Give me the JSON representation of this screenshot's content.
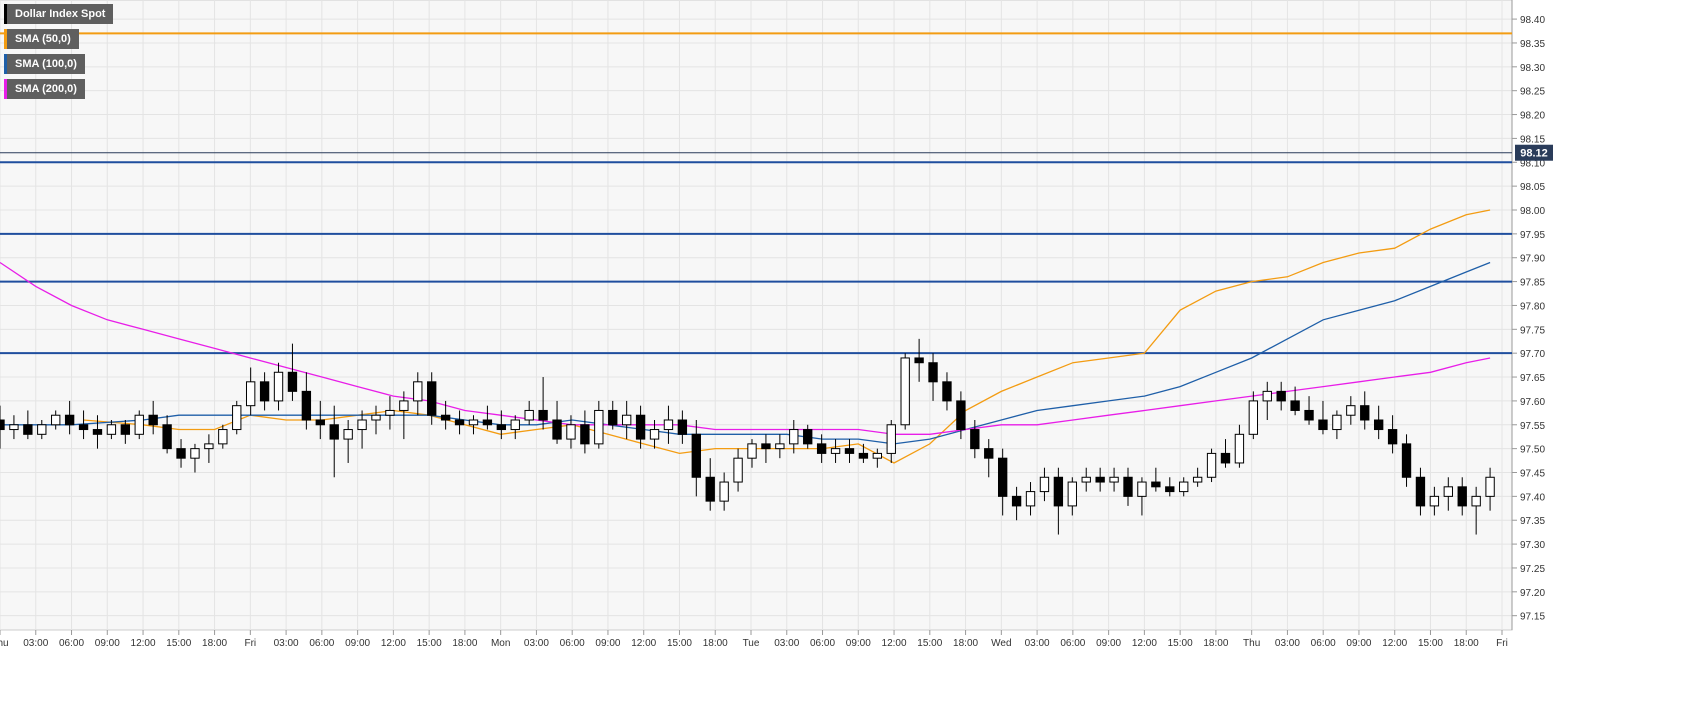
{
  "chart_data": {
    "type": "candlestick",
    "title": "Dollar Index Spot",
    "ylim": [
      97.12,
      98.44
    ],
    "grid": true,
    "legend_position": "top-left",
    "current_price": {
      "value": 98.12,
      "label": "98.12",
      "color": "#2a3c5a"
    },
    "y_ticks": [
      "97.15",
      "97.20",
      "97.25",
      "97.30",
      "97.35",
      "97.40",
      "97.45",
      "97.50",
      "97.55",
      "97.60",
      "97.65",
      "97.70",
      "97.75",
      "97.80",
      "97.85",
      "97.90",
      "97.95",
      "98.00",
      "98.05",
      "98.10",
      "98.15",
      "98.20",
      "98.25",
      "98.30",
      "98.35",
      "98.40"
    ],
    "x_ticks": [
      {
        "label": "Thu",
        "pos": 0
      },
      {
        "label": "03:00",
        "pos": 3
      },
      {
        "label": "06:00",
        "pos": 6
      },
      {
        "label": "09:00",
        "pos": 9
      },
      {
        "label": "12:00",
        "pos": 12
      },
      {
        "label": "15:00",
        "pos": 15
      },
      {
        "label": "18:00",
        "pos": 18
      },
      {
        "label": "Fri",
        "pos": 21
      },
      {
        "label": "03:00",
        "pos": 24
      },
      {
        "label": "06:00",
        "pos": 27
      },
      {
        "label": "09:00",
        "pos": 30
      },
      {
        "label": "12:00",
        "pos": 33
      },
      {
        "label": "15:00",
        "pos": 36
      },
      {
        "label": "18:00",
        "pos": 39
      },
      {
        "label": "Mon",
        "pos": 42
      },
      {
        "label": "03:00",
        "pos": 45
      },
      {
        "label": "06:00",
        "pos": 48
      },
      {
        "label": "09:00",
        "pos": 51
      },
      {
        "label": "12:00",
        "pos": 54
      },
      {
        "label": "15:00",
        "pos": 57
      },
      {
        "label": "18:00",
        "pos": 60
      },
      {
        "label": "Tue",
        "pos": 63
      },
      {
        "label": "03:00",
        "pos": 66
      },
      {
        "label": "06:00",
        "pos": 69
      },
      {
        "label": "09:00",
        "pos": 72
      },
      {
        "label": "12:00",
        "pos": 75
      },
      {
        "label": "15:00",
        "pos": 78
      },
      {
        "label": "18:00",
        "pos": 81
      },
      {
        "label": "Wed",
        "pos": 84
      },
      {
        "label": "03:00",
        "pos": 87
      },
      {
        "label": "06:00",
        "pos": 90
      },
      {
        "label": "09:00",
        "pos": 93
      },
      {
        "label": "12:00",
        "pos": 96
      },
      {
        "label": "15:00",
        "pos": 99
      },
      {
        "label": "18:00",
        "pos": 102
      },
      {
        "label": "Thu",
        "pos": 105
      },
      {
        "label": "03:00",
        "pos": 108
      },
      {
        "label": "06:00",
        "pos": 111
      },
      {
        "label": "09:00",
        "pos": 114
      },
      {
        "label": "12:00",
        "pos": 117
      },
      {
        "label": "15:00",
        "pos": 120
      },
      {
        "label": "18:00",
        "pos": 123
      },
      {
        "label": "Fri",
        "pos": 126
      }
    ],
    "horizontal_levels": [
      {
        "value": 98.37,
        "color": "#f39c12"
      },
      {
        "value": 98.1,
        "color": "#1f4e9e"
      },
      {
        "value": 97.95,
        "color": "#1f4e9e"
      },
      {
        "value": 97.85,
        "color": "#1f4e9e"
      },
      {
        "value": 97.7,
        "color": "#1f4e9e"
      }
    ],
    "series": [
      {
        "name": "SMA (50,0)",
        "color": "#f39c12",
        "x": [
          7,
          12,
          15,
          18,
          21,
          24,
          27,
          30,
          33,
          36,
          39,
          42,
          45,
          48,
          51,
          54,
          57,
          60,
          63,
          66,
          69,
          72,
          75,
          78,
          81,
          84,
          87,
          90,
          93,
          96,
          99,
          102,
          105,
          108,
          111,
          114,
          117,
          120,
          123,
          125
        ],
        "values": [
          97.56,
          97.55,
          97.54,
          97.54,
          97.57,
          97.56,
          97.56,
          97.57,
          97.58,
          97.57,
          97.55,
          97.53,
          97.54,
          97.55,
          97.53,
          97.51,
          97.49,
          97.5,
          97.5,
          97.5,
          97.5,
          97.51,
          97.47,
          97.51,
          97.58,
          97.62,
          97.65,
          97.68,
          97.69,
          97.7,
          97.79,
          97.83,
          97.85,
          97.86,
          97.89,
          97.91,
          97.92,
          97.96,
          97.99,
          98.0
        ]
      },
      {
        "name": "SMA (100,0)",
        "color": "#1f5fa8",
        "x": [
          0,
          6,
          12,
          15,
          18,
          21,
          24,
          27,
          30,
          33,
          36,
          39,
          42,
          45,
          48,
          51,
          54,
          57,
          60,
          63,
          66,
          69,
          72,
          75,
          78,
          81,
          84,
          87,
          90,
          93,
          96,
          99,
          102,
          105,
          108,
          111,
          114,
          117,
          120,
          123,
          125
        ],
        "values": [
          97.55,
          97.55,
          97.56,
          97.57,
          97.57,
          97.57,
          97.57,
          97.57,
          97.57,
          97.57,
          97.57,
          97.56,
          97.55,
          97.55,
          97.56,
          97.55,
          97.54,
          97.53,
          97.53,
          97.53,
          97.53,
          97.52,
          97.52,
          97.51,
          97.52,
          97.54,
          97.56,
          97.58,
          97.59,
          97.6,
          97.61,
          97.63,
          97.66,
          97.69,
          97.73,
          97.77,
          97.79,
          97.81,
          97.84,
          97.87,
          97.89
        ]
      },
      {
        "name": "SMA (200,0)",
        "color": "#e81ee8",
        "x": [
          0,
          3,
          6,
          9,
          12,
          15,
          18,
          21,
          24,
          27,
          30,
          33,
          36,
          39,
          42,
          45,
          48,
          51,
          54,
          57,
          60,
          63,
          66,
          69,
          72,
          75,
          78,
          81,
          84,
          87,
          90,
          93,
          96,
          99,
          102,
          105,
          108,
          111,
          114,
          117,
          120,
          123,
          125
        ],
        "values": [
          97.89,
          97.84,
          97.8,
          97.77,
          97.75,
          97.73,
          97.71,
          97.69,
          97.67,
          97.65,
          97.63,
          97.61,
          97.6,
          97.58,
          97.57,
          97.56,
          97.55,
          97.55,
          97.55,
          97.55,
          97.54,
          97.54,
          97.54,
          97.54,
          97.54,
          97.53,
          97.53,
          97.54,
          97.55,
          97.55,
          97.56,
          97.57,
          97.58,
          97.59,
          97.6,
          97.61,
          97.62,
          97.63,
          97.64,
          97.65,
          97.66,
          97.68,
          97.69
        ]
      },
      {
        "name": "Dollar Index Spot",
        "color": "#000000",
        "ohlc": [
          [
            97.56,
            97.59,
            97.5,
            97.54
          ],
          [
            97.54,
            97.57,
            97.52,
            97.55
          ],
          [
            97.55,
            97.58,
            97.52,
            97.53
          ],
          [
            97.53,
            97.56,
            97.52,
            97.55
          ],
          [
            97.55,
            97.58,
            97.54,
            97.57
          ],
          [
            97.57,
            97.6,
            97.53,
            97.55
          ],
          [
            97.55,
            97.58,
            97.52,
            97.54
          ],
          [
            97.54,
            97.57,
            97.5,
            97.53
          ],
          [
            97.53,
            97.56,
            97.52,
            97.55
          ],
          [
            97.55,
            97.56,
            97.51,
            97.53
          ],
          [
            97.53,
            97.58,
            97.52,
            97.57
          ],
          [
            97.57,
            97.6,
            97.53,
            97.55
          ],
          [
            97.55,
            97.57,
            97.49,
            97.5
          ],
          [
            97.5,
            97.52,
            97.46,
            97.48
          ],
          [
            97.48,
            97.51,
            97.45,
            97.5
          ],
          [
            97.5,
            97.53,
            97.47,
            97.51
          ],
          [
            97.51,
            97.55,
            97.5,
            97.54
          ],
          [
            97.54,
            97.6,
            97.53,
            97.59
          ],
          [
            97.59,
            97.67,
            97.57,
            97.64
          ],
          [
            97.64,
            97.66,
            97.58,
            97.6
          ],
          [
            97.6,
            97.68,
            97.58,
            97.66
          ],
          [
            97.66,
            97.72,
            97.6,
            97.62
          ],
          [
            97.62,
            97.66,
            97.54,
            97.56
          ],
          [
            97.56,
            97.6,
            97.52,
            97.55
          ],
          [
            97.55,
            97.59,
            97.44,
            97.52
          ],
          [
            97.52,
            97.56,
            97.47,
            97.54
          ],
          [
            97.54,
            97.58,
            97.5,
            97.56
          ],
          [
            97.56,
            97.59,
            97.53,
            97.57
          ],
          [
            97.57,
            97.61,
            97.54,
            97.58
          ],
          [
            97.58,
            97.62,
            97.52,
            97.6
          ],
          [
            97.6,
            97.66,
            97.57,
            97.64
          ],
          [
            97.64,
            97.66,
            97.55,
            97.57
          ],
          [
            97.57,
            97.6,
            97.54,
            97.56
          ],
          [
            97.56,
            97.58,
            97.53,
            97.55
          ],
          [
            97.55,
            97.57,
            97.53,
            97.56
          ],
          [
            97.56,
            97.59,
            97.54,
            97.55
          ],
          [
            97.55,
            97.58,
            97.52,
            97.54
          ],
          [
            97.54,
            97.57,
            97.52,
            97.56
          ],
          [
            97.56,
            97.6,
            97.55,
            97.58
          ],
          [
            97.58,
            97.65,
            97.54,
            97.56
          ],
          [
            97.56,
            97.6,
            97.51,
            97.52
          ],
          [
            97.52,
            97.57,
            97.5,
            97.55
          ],
          [
            97.55,
            97.58,
            97.49,
            97.51
          ],
          [
            97.51,
            97.6,
            97.5,
            97.58
          ],
          [
            97.58,
            97.6,
            97.54,
            97.55
          ],
          [
            97.55,
            97.6,
            97.52,
            97.57
          ],
          [
            97.57,
            97.59,
            97.5,
            97.52
          ],
          [
            97.52,
            97.56,
            97.5,
            97.54
          ],
          [
            97.54,
            97.59,
            97.51,
            97.56
          ],
          [
            97.56,
            97.58,
            97.51,
            97.53
          ],
          [
            97.53,
            97.56,
            97.4,
            97.44
          ],
          [
            97.44,
            97.48,
            97.37,
            97.39
          ],
          [
            97.39,
            97.45,
            97.37,
            97.43
          ],
          [
            97.43,
            97.5,
            97.41,
            97.48
          ],
          [
            97.48,
            97.52,
            97.46,
            97.51
          ],
          [
            97.51,
            97.53,
            97.47,
            97.5
          ],
          [
            97.5,
            97.53,
            97.48,
            97.51
          ],
          [
            97.51,
            97.56,
            97.49,
            97.54
          ],
          [
            97.54,
            97.55,
            97.5,
            97.51
          ],
          [
            97.51,
            97.53,
            97.47,
            97.49
          ],
          [
            97.49,
            97.52,
            97.47,
            97.5
          ],
          [
            97.5,
            97.52,
            97.47,
            97.49
          ],
          [
            97.49,
            97.51,
            97.47,
            97.48
          ],
          [
            97.48,
            97.5,
            97.46,
            97.49
          ],
          [
            97.49,
            97.56,
            97.47,
            97.55
          ],
          [
            97.55,
            97.7,
            97.54,
            97.69
          ],
          [
            97.69,
            97.73,
            97.64,
            97.68
          ],
          [
            97.68,
            97.7,
            97.6,
            97.64
          ],
          [
            97.64,
            97.66,
            97.58,
            97.6
          ],
          [
            97.6,
            97.62,
            97.52,
            97.54
          ],
          [
            97.54,
            97.56,
            97.48,
            97.5
          ],
          [
            97.5,
            97.52,
            97.44,
            97.48
          ],
          [
            97.48,
            97.5,
            97.36,
            97.4
          ],
          [
            97.4,
            97.42,
            97.35,
            97.38
          ],
          [
            97.38,
            97.43,
            97.36,
            97.41
          ],
          [
            97.41,
            97.46,
            97.39,
            97.44
          ],
          [
            97.44,
            97.46,
            97.32,
            97.38
          ],
          [
            97.38,
            97.44,
            97.36,
            97.43
          ],
          [
            97.43,
            97.46,
            97.41,
            97.44
          ],
          [
            97.44,
            97.46,
            97.41,
            97.43
          ],
          [
            97.43,
            97.46,
            97.41,
            97.44
          ],
          [
            97.44,
            97.46,
            97.38,
            97.4
          ],
          [
            97.4,
            97.44,
            97.36,
            97.43
          ],
          [
            97.43,
            97.46,
            97.41,
            97.42
          ],
          [
            97.42,
            97.44,
            97.4,
            97.41
          ],
          [
            97.41,
            97.44,
            97.4,
            97.43
          ],
          [
            97.43,
            97.46,
            97.42,
            97.44
          ],
          [
            97.44,
            97.5,
            97.43,
            97.49
          ],
          [
            97.49,
            97.52,
            97.46,
            97.47
          ],
          [
            97.47,
            97.55,
            97.46,
            97.53
          ],
          [
            97.53,
            97.62,
            97.52,
            97.6
          ],
          [
            97.6,
            97.64,
            97.56,
            97.62
          ],
          [
            97.62,
            97.64,
            97.58,
            97.6
          ],
          [
            97.6,
            97.63,
            97.57,
            97.58
          ],
          [
            97.58,
            97.61,
            97.55,
            97.56
          ],
          [
            97.56,
            97.6,
            97.53,
            97.54
          ],
          [
            97.54,
            97.58,
            97.52,
            97.57
          ],
          [
            97.57,
            97.61,
            97.55,
            97.59
          ],
          [
            97.59,
            97.62,
            97.54,
            97.56
          ],
          [
            97.56,
            97.59,
            97.52,
            97.54
          ],
          [
            97.54,
            97.57,
            97.49,
            97.51
          ],
          [
            97.51,
            97.53,
            97.42,
            97.44
          ],
          [
            97.44,
            97.46,
            97.36,
            97.38
          ],
          [
            97.38,
            97.42,
            97.36,
            97.4
          ],
          [
            97.4,
            97.44,
            97.37,
            97.42
          ],
          [
            97.42,
            97.44,
            97.36,
            97.38
          ],
          [
            97.38,
            97.42,
            97.32,
            97.4
          ],
          [
            97.4,
            97.46,
            97.37,
            97.44
          ]
        ]
      }
    ]
  },
  "legend": {
    "items": [
      {
        "label": "Dollar Index Spot",
        "color": "#000000"
      },
      {
        "label": "SMA (50,0)",
        "color": "#f39c12"
      },
      {
        "label": "SMA (100,0)",
        "color": "#1f5fa8"
      },
      {
        "label": "SMA (200,0)",
        "color": "#e81ee8"
      }
    ]
  }
}
